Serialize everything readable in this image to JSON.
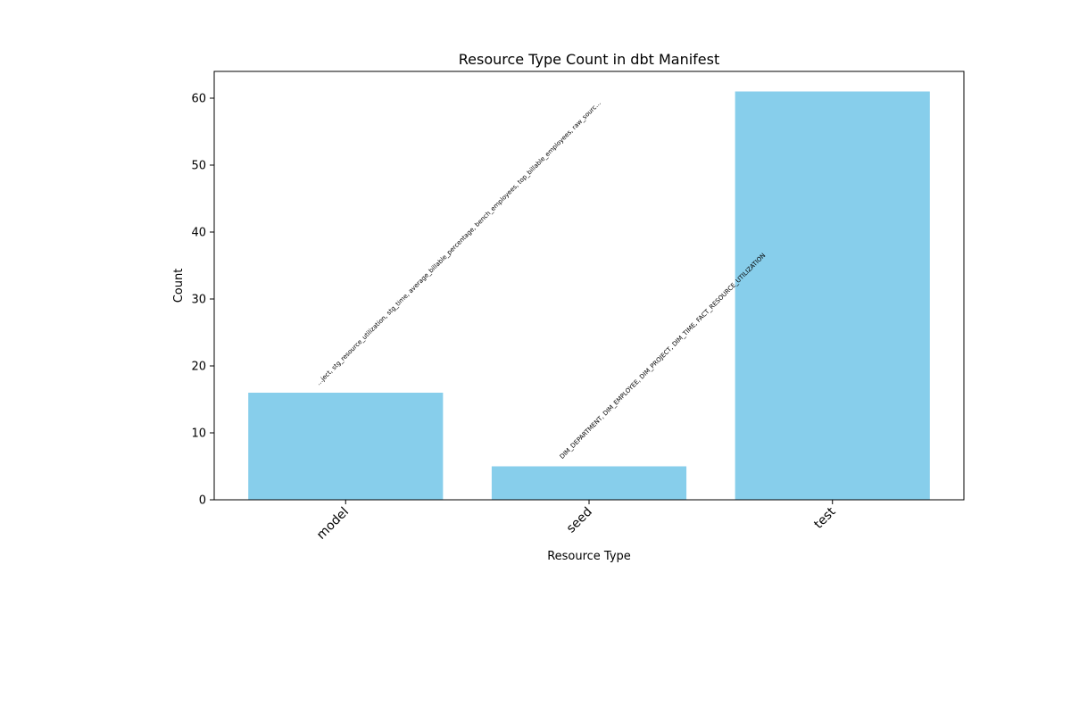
{
  "chart_data": {
    "type": "bar",
    "title": "Resource Type Count in dbt Manifest",
    "xlabel": "Resource Type",
    "ylabel": "Count",
    "categories": [
      "model",
      "seed",
      "test"
    ],
    "values": [
      16,
      5,
      61
    ],
    "ylim": [
      0,
      64
    ],
    "yticks": [
      0,
      10,
      20,
      30,
      40,
      50,
      60
    ],
    "grid": false,
    "legend": "none",
    "bar_color": "#87ceeb",
    "annotations": [
      "…ject, stg_resource_utilization, stg_time, average_billable_percentage, bench_employees, top_billable_employees, raw_sourc…",
      "DIM_DEPARTMENT, DIM_EMPLOYEE, DIM_PROJECT, DIM_TIME, FACT_RESOURCE_UTILIZATION",
      ""
    ]
  }
}
